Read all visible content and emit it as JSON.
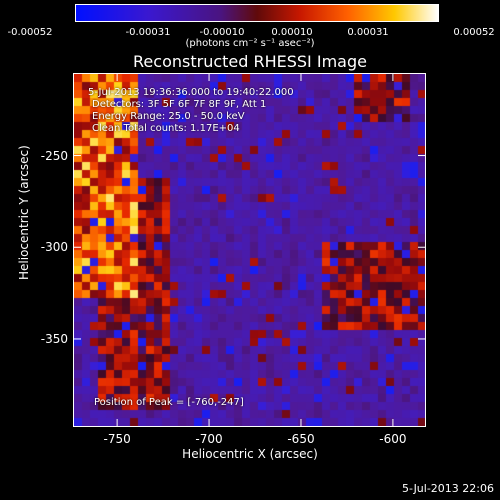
{
  "colorbar": {
    "tick_labels": [
      "-0.00052",
      "-0.00031",
      "-0.00010",
      "0.00010",
      "0.00031",
      "0.00052"
    ],
    "unit": "(photons cm⁻² s⁻¹ asec⁻²)"
  },
  "chart_data": {
    "type": "heatmap",
    "title": "Reconstructed RHESSI Image",
    "xlabel": "Heliocentric X (arcsec)",
    "ylabel": "Heliocentric Y (arcsec)",
    "xticks": [
      -750,
      -700,
      -650,
      -600
    ],
    "yticks": [
      -250,
      -300,
      -350
    ],
    "xlim": [
      -774,
      -582
    ],
    "ylim": [
      -398,
      -205
    ],
    "colorbar_range": [
      -0.00052,
      0.00052
    ],
    "colormap": "blue-purple-red-yellow-white",
    "peak": [
      -760,
      -247
    ],
    "bright_regions": [
      {
        "name": "upper-left bright rim",
        "x_range": [
          -774,
          -740
        ],
        "y_range": [
          -330,
          -205
        ],
        "level": "high"
      },
      {
        "name": "left red band",
        "x_range": [
          -760,
          -720
        ],
        "y_range": [
          -390,
          -260
        ],
        "level": "medium"
      },
      {
        "name": "right red cluster",
        "x_range": [
          -640,
          -582
        ],
        "y_range": [
          -345,
          -295
        ],
        "level": "medium"
      },
      {
        "name": "upper-right red patch",
        "x_range": [
          -620,
          -590
        ],
        "y_range": [
          -230,
          -205
        ],
        "level": "medium"
      }
    ],
    "annotations": {
      "time": "5-Jul-2013 19:36:36.000 to 19:40:22.000",
      "detectors": "Detectors: 3F 5F 6F 7F 8F 9F, Att 1",
      "energy": "Energy Range: 25.0 - 50.0 keV",
      "method": "Clean     Total counts: 1.17E+04",
      "peak_text": "Position of Peak = [-760,-247]"
    }
  },
  "footer": {
    "timestamp": "5-Jul-2013 22:06"
  }
}
